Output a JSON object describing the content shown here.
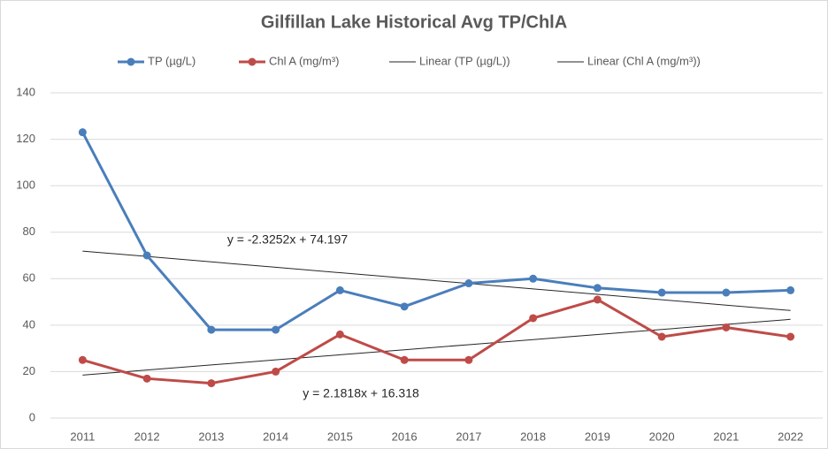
{
  "chart_data": {
    "type": "line",
    "title": "Gilfillan Lake Historical Avg TP/ChlA",
    "categories": [
      "2011",
      "2012",
      "2013",
      "2014",
      "2015",
      "2016",
      "2017",
      "2018",
      "2019",
      "2020",
      "2021",
      "2022"
    ],
    "series": [
      {
        "name": "TP (µg/L)",
        "color": "#4a7ebb",
        "markers": true,
        "line_width": 3,
        "values": [
          123,
          70,
          38,
          38,
          55,
          48,
          58,
          60,
          56,
          54,
          54,
          55
        ]
      },
      {
        "name": "Chl A (mg/m³)",
        "color": "#be4b48",
        "markers": true,
        "line_width": 3,
        "values": [
          25,
          17,
          15,
          20,
          36,
          25,
          25,
          43,
          51,
          35,
          39,
          35
        ]
      },
      {
        "name": "Linear (TP (µg/L))",
        "color": "#262626",
        "markers": false,
        "line_width": 1,
        "values": [
          71.87,
          69.55,
          67.22,
          64.9,
          62.57,
          60.25,
          57.92,
          55.6,
          53.27,
          50.95,
          48.62,
          46.3
        ]
      },
      {
        "name": "Linear (Chl A (mg/m³))",
        "color": "#262626",
        "markers": false,
        "line_width": 1,
        "values": [
          18.5,
          20.68,
          22.86,
          25.05,
          27.23,
          29.41,
          31.59,
          33.77,
          35.95,
          38.14,
          40.32,
          42.5
        ]
      }
    ],
    "annotations": [
      "y = -2.3252x + 74.197",
      "y = 2.1818x + 16.318"
    ],
    "ylim": [
      0,
      140
    ],
    "yticks": [
      0,
      20,
      40,
      60,
      80,
      100,
      120,
      140
    ],
    "grid": true
  }
}
